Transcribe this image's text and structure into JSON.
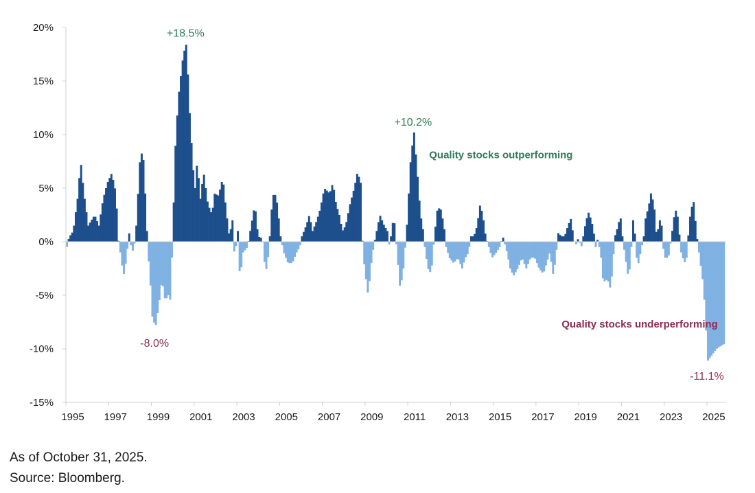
{
  "chart_data": {
    "type": "bar",
    "title": "",
    "xlabel": "",
    "ylabel": "",
    "ylim": [
      -15,
      20
    ],
    "xlim": [
      1995,
      2025.9
    ],
    "y_ticks": [
      20,
      15,
      10,
      5,
      0,
      -5,
      -10,
      -15
    ],
    "y_tick_labels": [
      "20%",
      "15%",
      "10%",
      "5%",
      "0%",
      "-5%",
      "-10%",
      "-15%"
    ],
    "x_ticks": [
      1995,
      1997,
      1999,
      2001,
      2003,
      2005,
      2007,
      2009,
      2011,
      2013,
      2015,
      2017,
      2019,
      2021,
      2023,
      2025
    ],
    "x_tick_labels": [
      "1995",
      "1997",
      "1999",
      "2001",
      "2003",
      "2005",
      "2007",
      "2009",
      "2011",
      "2013",
      "2015",
      "2017",
      "2019",
      "2021",
      "2023",
      "2025"
    ],
    "frequency": "monthly",
    "x_start": "1995-01",
    "x_end": "2025-10",
    "unit": "%",
    "positive_color": "#1c4f8c",
    "negative_color": "#7fb1e3",
    "value_anchors": [
      [
        1995.0,
        -0.5
      ],
      [
        1995.1,
        0.4
      ],
      [
        1995.3,
        1.0
      ],
      [
        1995.5,
        4.0
      ],
      [
        1995.65,
        7.5
      ],
      [
        1995.8,
        4.5
      ],
      [
        1996.0,
        1.5
      ],
      [
        1996.3,
        2.5
      ],
      [
        1996.5,
        1.5
      ],
      [
        1996.7,
        4.0
      ],
      [
        1996.9,
        5.5
      ],
      [
        1997.1,
        6.4
      ],
      [
        1997.3,
        4.5
      ],
      [
        1997.4,
        0.3
      ],
      [
        1997.5,
        -1.0
      ],
      [
        1997.65,
        -3.2
      ],
      [
        1997.8,
        -1.5
      ],
      [
        1997.9,
        1.0
      ],
      [
        1998.05,
        -1.0
      ],
      [
        1998.15,
        -0.5
      ],
      [
        1998.25,
        1.5
      ],
      [
        1998.45,
        8.6
      ],
      [
        1998.6,
        7.5
      ],
      [
        1998.7,
        3.0
      ],
      [
        1998.8,
        -1.0
      ],
      [
        1998.9,
        -3.5
      ],
      [
        1999.0,
        -7.0
      ],
      [
        1999.15,
        -8.0
      ],
      [
        1999.3,
        -6.0
      ],
      [
        1999.45,
        -3.5
      ],
      [
        1999.6,
        -5.5
      ],
      [
        1999.75,
        -5.0
      ],
      [
        1999.85,
        -5.5
      ],
      [
        1999.95,
        0.5
      ],
      [
        2000.1,
        10.0
      ],
      [
        2000.25,
        14.0
      ],
      [
        2000.45,
        17.5
      ],
      [
        2000.6,
        18.5
      ],
      [
        2000.75,
        12.0
      ],
      [
        2000.9,
        7.0
      ],
      [
        2001.0,
        5.0
      ],
      [
        2001.1,
        7.5
      ],
      [
        2001.25,
        4.0
      ],
      [
        2001.4,
        6.5
      ],
      [
        2001.6,
        3.5
      ],
      [
        2001.8,
        2.5
      ],
      [
        2001.9,
        4.5
      ],
      [
        2002.1,
        4.3
      ],
      [
        2002.3,
        6.0
      ],
      [
        2002.45,
        3.0
      ],
      [
        2002.6,
        0.5
      ],
      [
        2002.75,
        2.0
      ],
      [
        2002.85,
        -1.5
      ],
      [
        2003.0,
        1.0
      ],
      [
        2003.1,
        -3.5
      ],
      [
        2003.25,
        -1.0
      ],
      [
        2003.45,
        -0.5
      ],
      [
        2003.6,
        1.2
      ],
      [
        2003.8,
        3.5
      ],
      [
        2003.95,
        0.5
      ],
      [
        2004.15,
        0.3
      ],
      [
        2004.3,
        -3.0
      ],
      [
        2004.45,
        -1.0
      ],
      [
        2004.6,
        3.5
      ],
      [
        2004.7,
        4.8
      ],
      [
        2004.85,
        3.5
      ],
      [
        2005.0,
        0.5
      ],
      [
        2005.15,
        -1.0
      ],
      [
        2005.35,
        -2.0
      ],
      [
        2005.55,
        -2.0
      ],
      [
        2005.75,
        -1.0
      ],
      [
        2005.9,
        -0.5
      ],
      [
        2006.0,
        0.5
      ],
      [
        2006.2,
        1.5
      ],
      [
        2006.35,
        2.5
      ],
      [
        2006.5,
        1.0
      ],
      [
        2006.7,
        2.0
      ],
      [
        2006.85,
        3.0
      ],
      [
        2007.05,
        5.0
      ],
      [
        2007.3,
        4.5
      ],
      [
        2007.45,
        5.5
      ],
      [
        2007.6,
        3.5
      ],
      [
        2007.75,
        2.5
      ],
      [
        2007.9,
        1.0
      ],
      [
        2008.05,
        1.5
      ],
      [
        2008.25,
        3.5
      ],
      [
        2008.45,
        5.0
      ],
      [
        2008.6,
        6.5
      ],
      [
        2008.75,
        5.5
      ],
      [
        2008.85,
        -1.0
      ],
      [
        2009.0,
        -3.5
      ],
      [
        2009.1,
        -5.0
      ],
      [
        2009.25,
        -2.0
      ],
      [
        2009.35,
        -0.5
      ],
      [
        2009.5,
        1.0
      ],
      [
        2009.65,
        2.5
      ],
      [
        2009.85,
        1.5
      ],
      [
        2010.0,
        1.0
      ],
      [
        2010.1,
        -0.5
      ],
      [
        2010.3,
        2.5
      ],
      [
        2010.45,
        -1.0
      ],
      [
        2010.6,
        -4.5
      ],
      [
        2010.75,
        -2.5
      ],
      [
        2010.9,
        1.0
      ],
      [
        2011.1,
        8.0
      ],
      [
        2011.25,
        10.2
      ],
      [
        2011.4,
        6.5
      ],
      [
        2011.55,
        2.5
      ],
      [
        2011.65,
        1.5
      ],
      [
        2011.75,
        -0.5
      ],
      [
        2011.9,
        -2.5
      ],
      [
        2012.05,
        -3.0
      ],
      [
        2012.2,
        0.5
      ],
      [
        2012.35,
        3.2
      ],
      [
        2012.5,
        3.0
      ],
      [
        2012.65,
        1.5
      ],
      [
        2012.75,
        -0.5
      ],
      [
        2012.9,
        -1.5
      ],
      [
        2013.1,
        -2.0
      ],
      [
        2013.3,
        -1.5
      ],
      [
        2013.5,
        -2.5
      ],
      [
        2013.65,
        -1.5
      ],
      [
        2013.8,
        -1.0
      ],
      [
        2013.9,
        0.5
      ],
      [
        2014.05,
        0.5
      ],
      [
        2014.2,
        1.5
      ],
      [
        2014.35,
        3.6
      ],
      [
        2014.5,
        2.0
      ],
      [
        2014.6,
        0.5
      ],
      [
        2014.75,
        -0.5
      ],
      [
        2014.9,
        -1.5
      ],
      [
        2015.1,
        -1.0
      ],
      [
        2015.25,
        -0.5
      ],
      [
        2015.4,
        0.5
      ],
      [
        2015.6,
        -1.0
      ],
      [
        2015.75,
        -2.5
      ],
      [
        2015.9,
        -3.2
      ],
      [
        2016.1,
        -2.5
      ],
      [
        2016.3,
        -1.5
      ],
      [
        2016.5,
        -2.5
      ],
      [
        2016.7,
        -1.5
      ],
      [
        2016.9,
        -1.5
      ],
      [
        2017.1,
        -2.5
      ],
      [
        2017.3,
        -3.0
      ],
      [
        2017.45,
        -2.0
      ],
      [
        2017.6,
        -1.0
      ],
      [
        2017.75,
        -3.0
      ],
      [
        2017.85,
        -2.0
      ],
      [
        2018.0,
        0.8
      ],
      [
        2018.15,
        0.5
      ],
      [
        2018.3,
        0.5
      ],
      [
        2018.45,
        1.5
      ],
      [
        2018.6,
        2.2
      ],
      [
        2018.7,
        0.5
      ],
      [
        2018.8,
        -0.5
      ],
      [
        2018.9,
        0.3
      ],
      [
        2019.1,
        -0.5
      ],
      [
        2019.2,
        1.0
      ],
      [
        2019.4,
        2.8
      ],
      [
        2019.55,
        2.0
      ],
      [
        2019.65,
        1.0
      ],
      [
        2019.75,
        -0.5
      ],
      [
        2019.85,
        0.3
      ],
      [
        2020.0,
        -1.5
      ],
      [
        2020.1,
        -3.8
      ],
      [
        2020.3,
        -3.5
      ],
      [
        2020.45,
        -4.5
      ],
      [
        2020.55,
        -2.0
      ],
      [
        2020.65,
        0.5
      ],
      [
        2020.8,
        1.5
      ],
      [
        2020.9,
        2.5
      ],
      [
        2021.0,
        0.5
      ],
      [
        2021.1,
        -1.0
      ],
      [
        2021.25,
        -3.0
      ],
      [
        2021.35,
        -2.5
      ],
      [
        2021.5,
        2.0
      ],
      [
        2021.6,
        0.5
      ],
      [
        2021.7,
        -2.5
      ],
      [
        2021.85,
        -1.0
      ],
      [
        2022.0,
        0.5
      ],
      [
        2022.1,
        2.5
      ],
      [
        2022.2,
        3.0
      ],
      [
        2022.35,
        4.7
      ],
      [
        2022.5,
        3.0
      ],
      [
        2022.6,
        0.5
      ],
      [
        2022.7,
        1.5
      ],
      [
        2022.8,
        2.5
      ],
      [
        2022.9,
        -0.5
      ],
      [
        2023.0,
        -1.5
      ],
      [
        2023.15,
        -1.5
      ],
      [
        2023.3,
        0.5
      ],
      [
        2023.45,
        2.8
      ],
      [
        2023.55,
        3.0
      ],
      [
        2023.65,
        1.0
      ],
      [
        2023.75,
        -1.0
      ],
      [
        2023.9,
        -2.0
      ],
      [
        2024.0,
        -1.5
      ],
      [
        2024.1,
        1.0
      ],
      [
        2024.2,
        3.0
      ],
      [
        2024.35,
        3.8
      ],
      [
        2024.45,
        1.0
      ],
      [
        2024.55,
        -0.5
      ],
      [
        2024.65,
        -2.0
      ],
      [
        2024.75,
        -3.5
      ],
      [
        2024.85,
        -5.8
      ],
      [
        2024.93,
        -8.8
      ],
      [
        2025.0,
        -11.1
      ],
      [
        2025.4,
        -10.0
      ],
      [
        2025.8,
        -9.5
      ]
    ],
    "annotations": [
      {
        "text": "+18.5%",
        "x": 2000.6,
        "y": 18.5,
        "kind": "peak",
        "color": "#2e7d57"
      },
      {
        "text": "+10.2%",
        "x": 2011.25,
        "y": 10.2,
        "kind": "peak",
        "color": "#2e7d57"
      },
      {
        "text": "-8.0%",
        "x": 1999.15,
        "y": -8.0,
        "kind": "trough",
        "color": "#8a2e50"
      },
      {
        "text": "-11.1%",
        "x": 2025.0,
        "y": -11.1,
        "kind": "trough",
        "color": "#8a2e50"
      },
      {
        "text": "Quality stocks outperforming",
        "x": 2012.0,
        "y": 7.8,
        "kind": "note",
        "color": "#2e7d57"
      },
      {
        "text": "Quality stocks underperforming",
        "x": 2018.2,
        "y": -8.0,
        "kind": "note",
        "color": "#8a2e50"
      }
    ]
  },
  "footnotes": {
    "as_of": "As of October 31, 2025.",
    "source": "Source: Bloomberg."
  }
}
